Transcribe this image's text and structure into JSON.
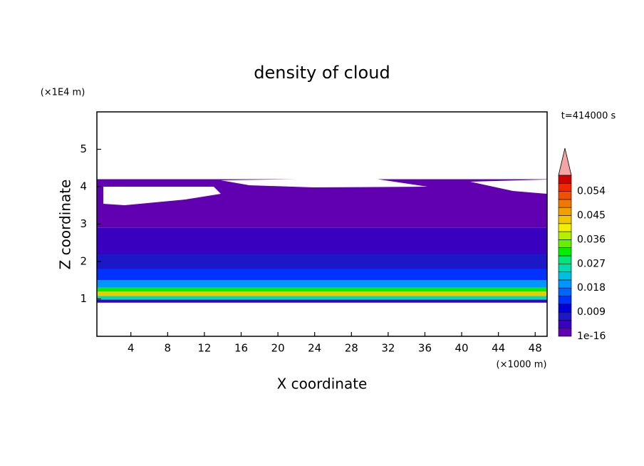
{
  "chart_data": {
    "type": "contour",
    "title": "density of cloud",
    "xlabel": "X coordinate",
    "ylabel": "Z coordinate",
    "x_unit": "(×1000 m)",
    "y_unit": "(×1E4 m)",
    "time_label": "t=414000 s",
    "xlim": [
      0.3,
      49.3
    ],
    "xticks": [
      4,
      8,
      12,
      16,
      20,
      24,
      28,
      32,
      36,
      40,
      44,
      48
    ],
    "ylim": [
      0,
      6
    ],
    "yticks": [
      1,
      2,
      3,
      4,
      5
    ],
    "field": [
      {
        "z0": 0.9,
        "z1": 0.98,
        "value": 0.004
      },
      {
        "z0": 0.98,
        "z1": 1.08,
        "value": 0.025
      },
      {
        "z0": 1.08,
        "z1": 1.2,
        "value": 0.043
      },
      {
        "z0": 1.2,
        "z1": 1.3,
        "value": 0.031
      },
      {
        "z0": 1.3,
        "z1": 1.5,
        "value": 0.019
      },
      {
        "z0": 1.5,
        "z1": 1.8,
        "value": 0.013
      },
      {
        "z0": 1.8,
        "z1": 2.2,
        "value": 0.008
      },
      {
        "z0": 2.2,
        "z1": 2.9,
        "value": 0.004
      },
      {
        "z0": 2.9,
        "z1": 4.2,
        "value": 0.001
      }
    ],
    "colorbar": {
      "levels": [
        1e-16,
        0.003,
        0.006,
        0.009,
        0.012,
        0.015,
        0.018,
        0.021,
        0.024,
        0.027,
        0.03,
        0.033,
        0.036,
        0.039,
        0.042,
        0.045,
        0.048,
        0.051,
        0.054,
        0.057,
        0.06
      ],
      "ticks": [
        1e-16,
        0.009,
        0.018,
        0.027,
        0.036,
        0.045,
        0.054
      ],
      "colors": [
        "#6000b0",
        "#3a00c0",
        "#1c18c8",
        "#0000d8",
        "#0032ff",
        "#0064ff",
        "#0096ff",
        "#00c0e0",
        "#00dcb0",
        "#00e678",
        "#00f000",
        "#64f000",
        "#b4f000",
        "#f0f000",
        "#f0c800",
        "#f0a000",
        "#f07800",
        "#f05000",
        "#f02800",
        "#d20000"
      ],
      "extend_color": "#f4a4a4"
    }
  }
}
